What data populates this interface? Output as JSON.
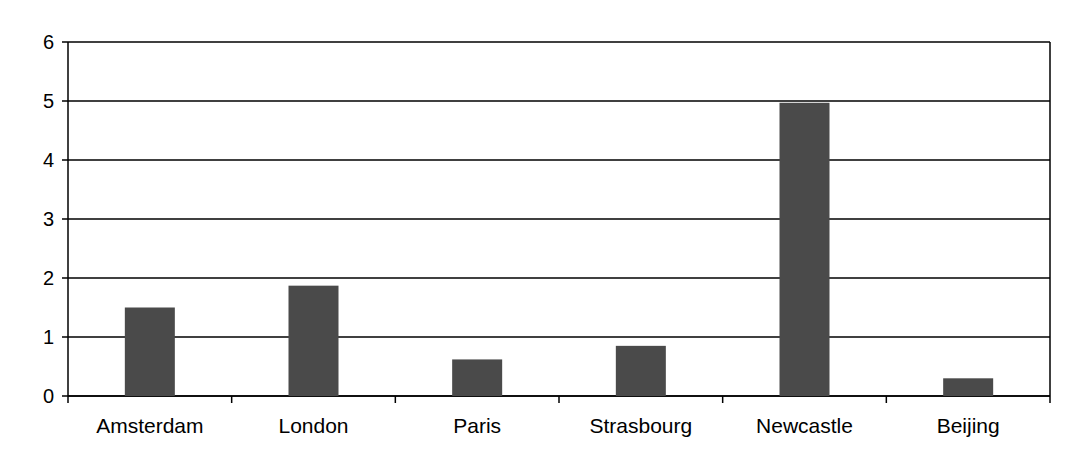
{
  "chart_data": {
    "type": "bar",
    "categories": [
      "Amsterdam",
      "London",
      "Paris",
      "Strasbourg",
      "Newcastle",
      "Beijing"
    ],
    "values": [
      1.5,
      1.87,
      0.62,
      0.85,
      4.97,
      0.3
    ],
    "color": "#4a4a4a",
    "ylim": [
      0,
      6
    ],
    "yticks": [
      0,
      1,
      2,
      3,
      4,
      5,
      6
    ],
    "grid": true
  }
}
